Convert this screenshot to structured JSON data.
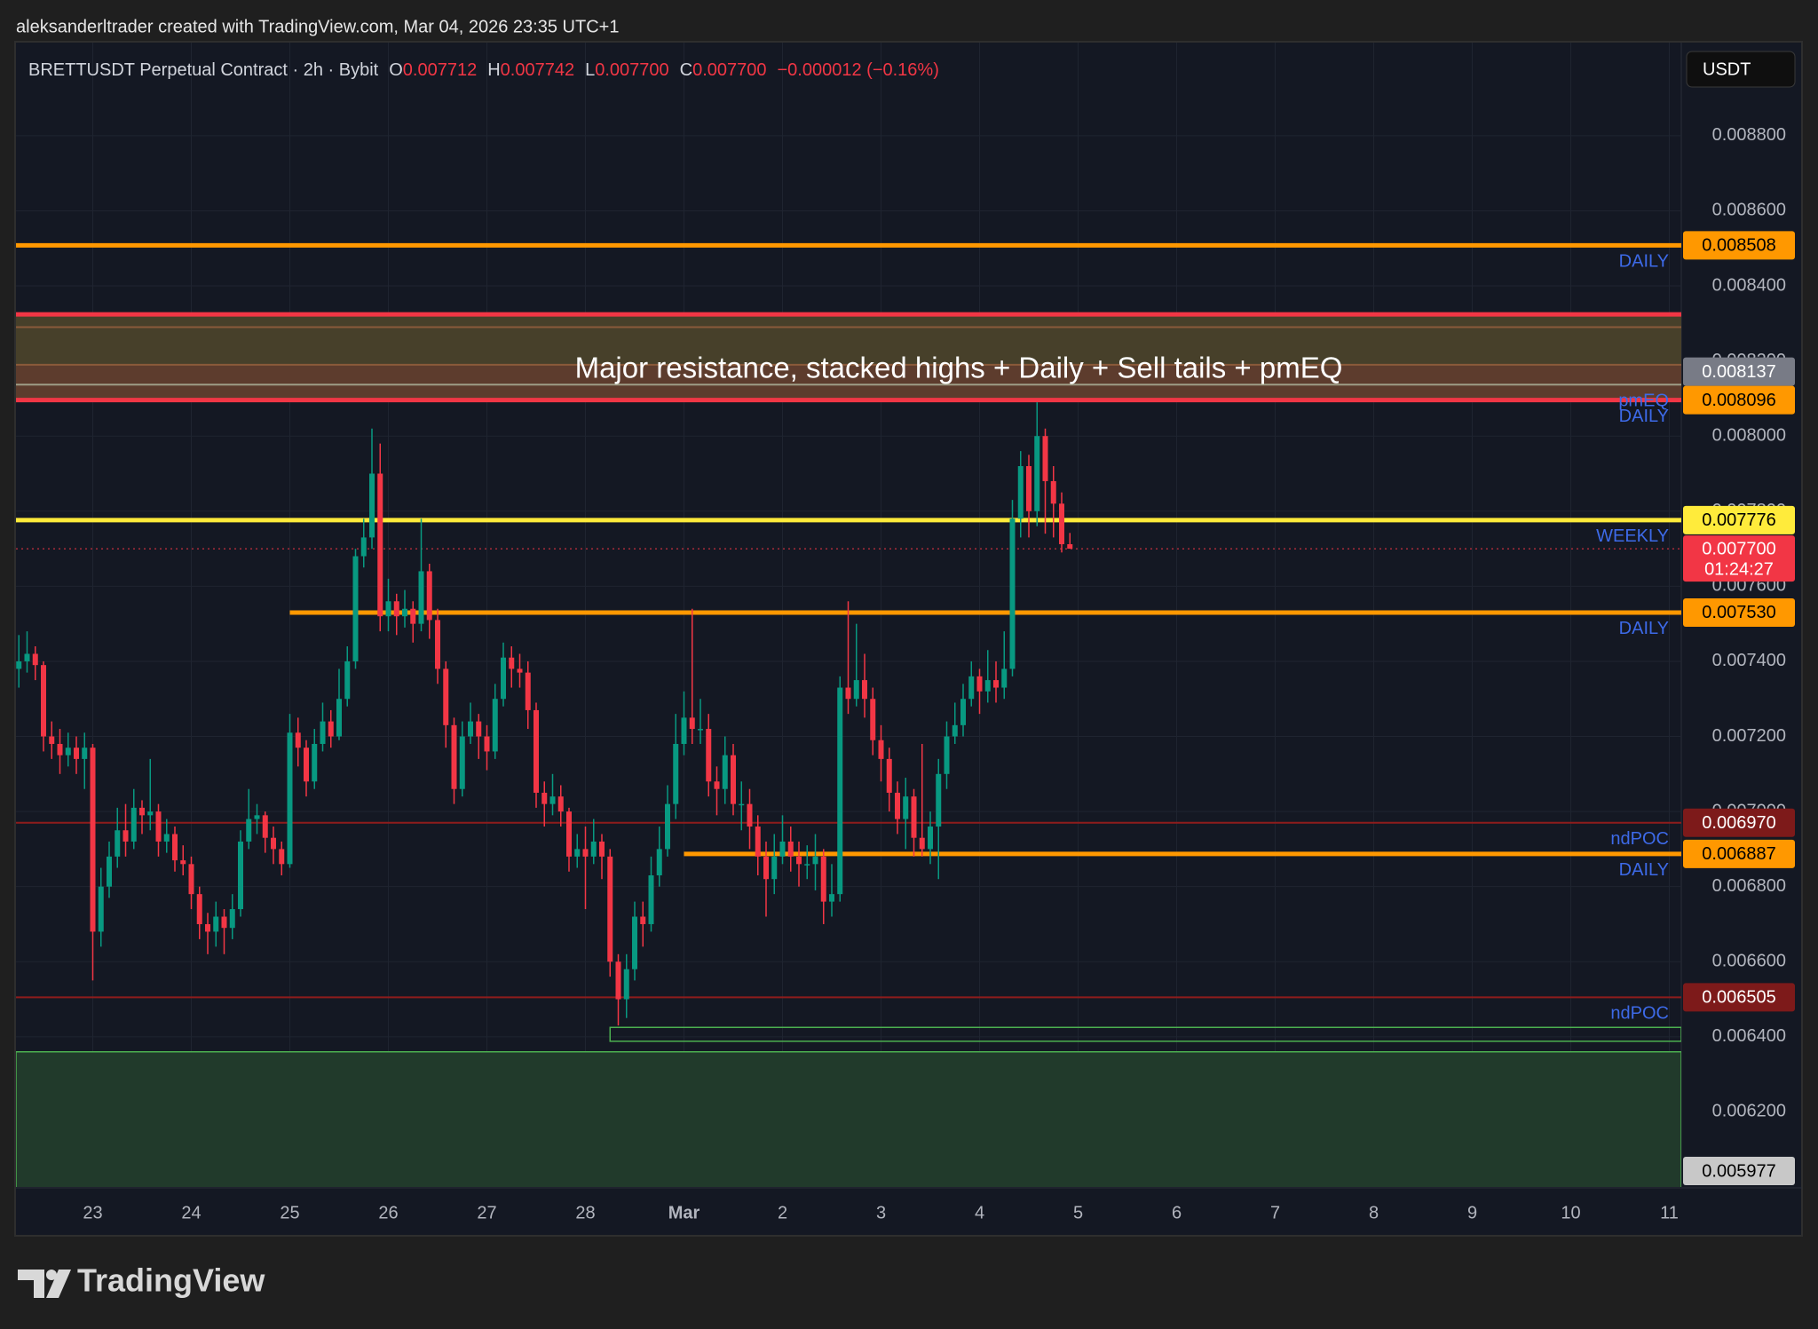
{
  "header": {
    "credit": "aleksanderltrader created with TradingView.com, Mar 04, 2026 23:35 UTC+1",
    "symbol": "BRETTUSDT Perpetual Contract · 2h · Bybit",
    "ohlc": [
      {
        "label": "O",
        "value": "0.007712"
      },
      {
        "label": "H",
        "value": "0.007742"
      },
      {
        "label": "L",
        "value": "0.007700"
      },
      {
        "label": "C",
        "value": "0.007700"
      }
    ],
    "change": "−0.000012 (−0.16%)"
  },
  "currency": "USDT",
  "brand": "TradingView",
  "chart_data": {
    "type": "candlestick",
    "up_color": "#089981",
    "down_color": "#f23645",
    "open": [
      0.00738,
      0.0074,
      0.00742,
      0.00739,
      0.0072,
      0.00718,
      0.00715,
      0.00717,
      0.00714,
      0.00717,
      0.00668,
      0.0068,
      0.00688,
      0.00695,
      0.00692,
      0.00701,
      0.00699,
      0.007,
      0.00692,
      0.00694,
      0.00687,
      0.00686,
      0.00678,
      0.0067,
      0.00668,
      0.00672,
      0.00669,
      0.00674,
      0.00692,
      0.00698,
      0.00699,
      0.00693,
      0.0069,
      0.00686,
      0.00721,
      0.00717,
      0.00708,
      0.00718,
      0.00724,
      0.0072,
      0.0073,
      0.0074,
      0.00768,
      0.00773,
      0.0079,
      0.00752,
      0.00756,
      0.00752,
      0.00754,
      0.0075,
      0.00764,
      0.00751,
      0.00738,
      0.00723,
      0.00706,
      0.0072,
      0.00724,
      0.0072,
      0.00716,
      0.0073,
      0.00741,
      0.00738,
      0.00737,
      0.00727,
      0.00705,
      0.00702,
      0.00704,
      0.007,
      0.00688,
      0.0069,
      0.00688,
      0.00692,
      0.00688,
      0.0066,
      0.0065,
      0.00658,
      0.00672,
      0.0067,
      0.00683,
      0.0069,
      0.00702,
      0.00718,
      0.00725,
      0.00722,
      0.00722,
      0.00708,
      0.00706,
      0.00715,
      0.00702,
      0.00702,
      0.00696,
      0.00688,
      0.00682,
      0.00688,
      0.00692,
      0.00688,
      0.00686,
      0.00686,
      0.00688,
      0.00676,
      0.00678,
      0.00733,
      0.0073,
      0.00735,
      0.0073,
      0.00719,
      0.00714,
      0.00705,
      0.00698,
      0.00704,
      0.00693,
      0.0069,
      0.00696,
      0.0071,
      0.0072,
      0.00723,
      0.0073,
      0.00736,
      0.00732,
      0.00735,
      0.00733,
      0.00738,
      0.00778,
      0.00792,
      0.0078,
      0.008,
      0.00788,
      0.00782,
      0.007712
    ],
    "high": [
      0.00747,
      0.00748,
      0.00744,
      0.0074,
      0.00724,
      0.00722,
      0.00721,
      0.0072,
      0.00721,
      0.00718,
      0.00685,
      0.00692,
      0.00701,
      0.00702,
      0.00706,
      0.00703,
      0.00714,
      0.00702,
      0.00698,
      0.00696,
      0.00691,
      0.00688,
      0.0068,
      0.00673,
      0.00676,
      0.00674,
      0.00678,
      0.00695,
      0.00706,
      0.00702,
      0.007,
      0.00696,
      0.00692,
      0.00726,
      0.00725,
      0.00719,
      0.00722,
      0.00729,
      0.00727,
      0.00738,
      0.00744,
      0.0077,
      0.00778,
      0.00802,
      0.00798,
      0.00762,
      0.00758,
      0.00759,
      0.00756,
      0.00778,
      0.00766,
      0.00754,
      0.0074,
      0.00725,
      0.00724,
      0.00729,
      0.00726,
      0.00723,
      0.00734,
      0.00745,
      0.00744,
      0.00742,
      0.0074,
      0.00729,
      0.00708,
      0.0071,
      0.00707,
      0.00701,
      0.00694,
      0.00696,
      0.00698,
      0.00694,
      0.0069,
      0.00662,
      0.00662,
      0.00676,
      0.00676,
      0.00688,
      0.00696,
      0.00707,
      0.00726,
      0.00732,
      0.00754,
      0.0073,
      0.00726,
      0.00712,
      0.0072,
      0.00718,
      0.00708,
      0.00706,
      0.00699,
      0.00692,
      0.00694,
      0.00699,
      0.00696,
      0.00692,
      0.00691,
      0.00694,
      0.0069,
      0.00686,
      0.00736,
      0.00756,
      0.0075,
      0.00742,
      0.00733,
      0.00723,
      0.00717,
      0.00708,
      0.00709,
      0.00706,
      0.00718,
      0.007,
      0.00714,
      0.00724,
      0.00729,
      0.00734,
      0.0074,
      0.00738,
      0.00743,
      0.0074,
      0.00748,
      0.00783,
      0.00796,
      0.00795,
      0.00809,
      0.00802,
      0.00792,
      0.00785,
      0.007742
    ],
    "low": [
      0.00733,
      0.00737,
      0.00735,
      0.00716,
      0.00714,
      0.0071,
      0.00712,
      0.0071,
      0.00706,
      0.00655,
      0.00664,
      0.00677,
      0.00685,
      0.00688,
      0.0069,
      0.00694,
      0.00695,
      0.00688,
      0.00689,
      0.00684,
      0.00683,
      0.00674,
      0.00666,
      0.00662,
      0.00664,
      0.00662,
      0.00666,
      0.00672,
      0.0069,
      0.00694,
      0.00689,
      0.00686,
      0.00683,
      0.00685,
      0.00712,
      0.00704,
      0.00706,
      0.00716,
      0.00717,
      0.00719,
      0.00728,
      0.00738,
      0.00765,
      0.0077,
      0.00748,
      0.00748,
      0.00747,
      0.00749,
      0.00745,
      0.00748,
      0.00746,
      0.00734,
      0.00717,
      0.00702,
      0.00704,
      0.00718,
      0.00714,
      0.00711,
      0.00714,
      0.00728,
      0.00733,
      0.00733,
      0.00722,
      0.00701,
      0.00696,
      0.00699,
      0.00696,
      0.00684,
      0.00685,
      0.00674,
      0.00686,
      0.00682,
      0.00656,
      0.00643,
      0.00645,
      0.00655,
      0.00664,
      0.00668,
      0.0068,
      0.00688,
      0.00698,
      0.00715,
      0.00718,
      0.00718,
      0.00704,
      0.00699,
      0.00702,
      0.00699,
      0.00695,
      0.0069,
      0.00683,
      0.00672,
      0.00678,
      0.00686,
      0.00684,
      0.0068,
      0.00682,
      0.00679,
      0.0067,
      0.00672,
      0.00676,
      0.00726,
      0.00728,
      0.00725,
      0.00715,
      0.00708,
      0.007,
      0.00694,
      0.0069,
      0.00688,
      0.00688,
      0.00686,
      0.00682,
      0.00706,
      0.00718,
      0.0072,
      0.00728,
      0.00726,
      0.00729,
      0.00729,
      0.0073,
      0.00736,
      0.00773,
      0.00773,
      0.00776,
      0.00774,
      0.00773,
      0.00769,
      0.0077
    ],
    "close": [
      0.0074,
      0.00742,
      0.00739,
      0.0072,
      0.00718,
      0.00715,
      0.00717,
      0.00714,
      0.00717,
      0.00668,
      0.0068,
      0.00688,
      0.00695,
      0.00692,
      0.00701,
      0.00699,
      0.007,
      0.00692,
      0.00694,
      0.00687,
      0.00686,
      0.00678,
      0.0067,
      0.00668,
      0.00672,
      0.00669,
      0.00674,
      0.00692,
      0.00698,
      0.00699,
      0.00693,
      0.0069,
      0.00686,
      0.00721,
      0.00717,
      0.00708,
      0.00718,
      0.00724,
      0.0072,
      0.0073,
      0.0074,
      0.00768,
      0.00773,
      0.0079,
      0.00752,
      0.00756,
      0.00752,
      0.00754,
      0.0075,
      0.00764,
      0.00751,
      0.00738,
      0.00723,
      0.00706,
      0.0072,
      0.00724,
      0.0072,
      0.00716,
      0.0073,
      0.00741,
      0.00738,
      0.00737,
      0.00727,
      0.00705,
      0.00702,
      0.00704,
      0.007,
      0.00688,
      0.0069,
      0.00688,
      0.00692,
      0.00688,
      0.0066,
      0.0065,
      0.00658,
      0.00672,
      0.0067,
      0.00683,
      0.0069,
      0.00702,
      0.00718,
      0.00725,
      0.00722,
      0.00722,
      0.00708,
      0.00706,
      0.00715,
      0.00702,
      0.00702,
      0.00696,
      0.00688,
      0.00682,
      0.00688,
      0.00692,
      0.00688,
      0.00686,
      0.00686,
      0.00688,
      0.00676,
      0.00678,
      0.00733,
      0.0073,
      0.00735,
      0.0073,
      0.00719,
      0.00714,
      0.00705,
      0.00698,
      0.00704,
      0.00693,
      0.0069,
      0.00696,
      0.0071,
      0.0072,
      0.00723,
      0.0073,
      0.00736,
      0.00732,
      0.00735,
      0.00733,
      0.00738,
      0.00778,
      0.00792,
      0.0078,
      0.008,
      0.00788,
      0.00782,
      0.007712,
      0.0077
    ],
    "x_labels": [
      "23",
      "24",
      "25",
      "26",
      "27",
      "28",
      "Mar",
      "2",
      "3",
      "4",
      "5",
      "6",
      "7",
      "8",
      "9",
      "10",
      "11"
    ],
    "ylim": [
      0.006,
      0.009048
    ],
    "yticks": [
      {
        "value": 0.0088,
        "label": "0.008800"
      },
      {
        "value": 0.0086,
        "label": "0.008600"
      },
      {
        "value": 0.0084,
        "label": "0.008400"
      },
      {
        "value": 0.0082,
        "label": "0.008200"
      },
      {
        "value": 0.008,
        "label": "0.008000"
      },
      {
        "value": 0.0078,
        "label": "0.007800"
      },
      {
        "value": 0.0076,
        "label": "0.007600"
      },
      {
        "value": 0.0074,
        "label": "0.007400"
      },
      {
        "value": 0.0072,
        "label": "0.007200"
      },
      {
        "value": 0.007,
        "label": "0.007000"
      },
      {
        "value": 0.0068,
        "label": "0.006800"
      },
      {
        "value": 0.0066,
        "label": "0.006600"
      },
      {
        "value": 0.0064,
        "label": "0.006400"
      },
      {
        "value": 0.0062,
        "label": "0.006200"
      }
    ],
    "grid": true,
    "zones": [
      {
        "from": 0.00819,
        "to": 0.008324,
        "fill": "#47402a"
      },
      {
        "from": 0.008096,
        "to": 0.00819,
        "fill": "#5d3c2d"
      },
      {
        "from": 0.005977,
        "to": 0.00636,
        "fill": "#213a2b",
        "edge": "#4caf50"
      },
      {
        "from": 0.006388,
        "to": 0.006425,
        "fill": "none",
        "edge": "#4caf50"
      }
    ],
    "zone_lines": [
      {
        "value": 0.008324,
        "color": "#f23645",
        "style": "thick"
      },
      {
        "value": 0.00829,
        "color": "#8a5a3a",
        "style": "thin"
      },
      {
        "value": 0.00819,
        "color": "#8a5a3a",
        "style": "thin"
      }
    ],
    "annotation": "Major resistance, stacked highs + Daily + Sell tails + pmEQ",
    "levels": [
      {
        "value": 0.008508,
        "label": "0.008508",
        "note": "DAILY",
        "color": "#ff9800",
        "tag_color": "#ff9800",
        "tag_text": "#000000",
        "style": "thick"
      },
      {
        "value": 0.008137,
        "label": "0.008137",
        "note": "pmEQ",
        "color": "#9e9d86",
        "tag_color": "#787b86",
        "tag_text": "#ffffff",
        "style": "thin"
      },
      {
        "value": 0.008096,
        "label": "0.008096",
        "note": "DAILY",
        "color": "#f23645",
        "tag_color": "#ff9800",
        "tag_text": "#000000",
        "style": "thick"
      },
      {
        "value": 0.007776,
        "label": "0.007776",
        "note": "WEEKLY",
        "color": "#ffeb3b",
        "tag_color": "#ffeb3b",
        "tag_text": "#000000",
        "style": "thick"
      },
      {
        "value": 0.00753,
        "label": "0.007530",
        "note": "DAILY",
        "color": "#ff9800",
        "tag_color": "#ff9800",
        "tag_text": "#000000",
        "style": "thick"
      },
      {
        "value": 0.00697,
        "label": "0.006970",
        "note": "ndPOC",
        "color": "#8e1c1c",
        "tag_color": "#7d1a1a",
        "tag_text": "#ffffff",
        "style": "thin"
      },
      {
        "value": 0.006887,
        "label": "0.006887",
        "note": "DAILY",
        "color": "#ff9800",
        "tag_color": "#ff9800",
        "tag_text": "#000000",
        "style": "thick"
      },
      {
        "value": 0.006505,
        "label": "0.006505",
        "note": "ndPOC",
        "color": "#8e1c1c",
        "tag_color": "#7d1a1a",
        "tag_text": "#ffffff",
        "style": "thin"
      },
      {
        "value": 0.005977,
        "label": "0.005977",
        "tag_color": "#c8c8c8",
        "tag_text": "#000000",
        "style": "none"
      }
    ],
    "last_price": {
      "value": 0.0077,
      "label": "0.007700",
      "countdown": "01:24:27",
      "color": "#f23645"
    }
  }
}
